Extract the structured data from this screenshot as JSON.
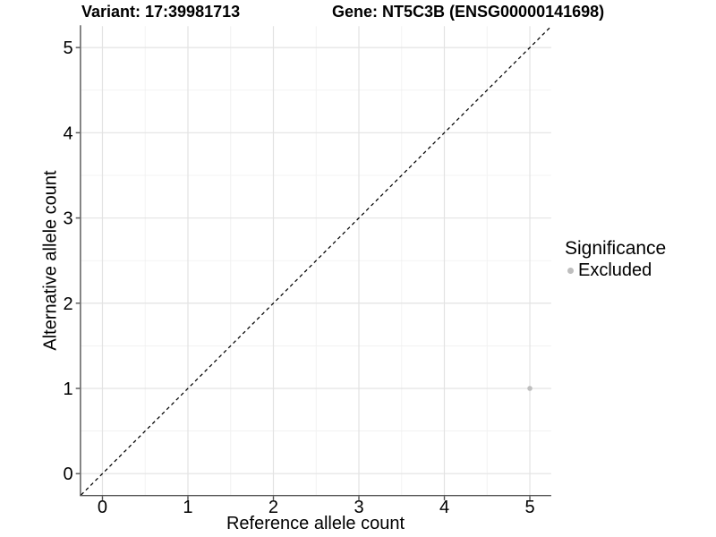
{
  "header": {
    "variant_title": "Variant: 17:39981713",
    "gene_title": "Gene: NT5C3B (ENSG00000141698)"
  },
  "chart_data": {
    "type": "scatter",
    "xlabel": "Reference allele count",
    "ylabel": "Alternative allele count",
    "xlim": [
      -0.25,
      5.25
    ],
    "ylim": [
      -0.25,
      5.25
    ],
    "x_ticks": [
      0,
      1,
      2,
      3,
      4,
      5
    ],
    "y_ticks": [
      0,
      1,
      2,
      3,
      4,
      5
    ],
    "grid": {
      "major": true,
      "minor": true
    },
    "reference_line": {
      "style": "dashed",
      "slope": 1,
      "intercept": 0,
      "color": "#000000"
    },
    "series": [
      {
        "name": "Excluded",
        "color": "#bebebe",
        "points": [
          {
            "x": 5,
            "y": 1
          }
        ]
      }
    ],
    "legend": {
      "position": "right",
      "title": "Significance",
      "items": [
        {
          "label": "Excluded",
          "color": "#bebebe"
        }
      ]
    }
  },
  "colors": {
    "background": "#ffffff",
    "grid_major": "#e3e3e3",
    "grid_minor": "#f1f1f1",
    "axis_line": "#545454",
    "tick_mark": "#545454",
    "text": "#000000",
    "point": "#bebebe"
  }
}
